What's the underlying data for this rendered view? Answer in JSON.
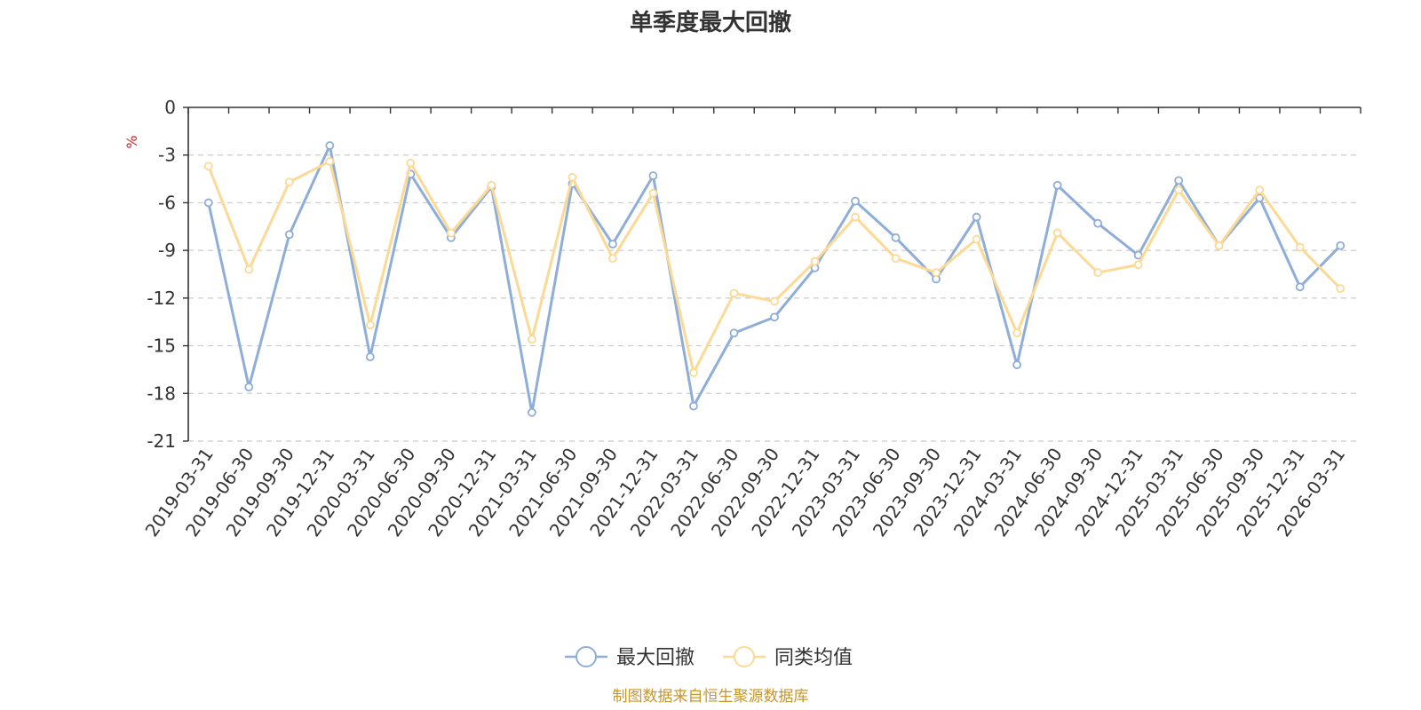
{
  "chart_data": {
    "type": "line",
    "title": "单季度最大回撤",
    "ylabel": "%",
    "ylim": [
      -21,
      0
    ],
    "yticks": [
      0,
      -3,
      -6,
      -9,
      -12,
      -15,
      -18,
      -21
    ],
    "categories": [
      "2019-03-31",
      "2019-06-30",
      "2019-09-30",
      "2019-12-31",
      "2020-03-31",
      "2020-06-30",
      "2020-09-30",
      "2020-12-31",
      "2021-03-31",
      "2021-06-30",
      "2021-09-30",
      "2021-12-31",
      "2022-03-31",
      "2022-06-30",
      "2022-09-30",
      "2022-12-31",
      "2023-03-31",
      "2023-06-30",
      "2023-09-30",
      "2023-12-31",
      "2024-03-31",
      "2024-06-30",
      "2024-09-30",
      "2024-12-31",
      "2025-03-31",
      "2025-06-30",
      "2025-09-30",
      "2025-12-31",
      "2026-03-31"
    ],
    "series": [
      {
        "name": "最大回撤",
        "color": "#8eaed9",
        "values": [
          -6.0,
          -17.6,
          -8.0,
          -2.4,
          -15.7,
          -4.2,
          -8.2,
          -5.0,
          -19.2,
          -4.8,
          -8.6,
          -4.3,
          -18.8,
          -14.2,
          -13.2,
          -10.1,
          -5.9,
          -8.2,
          -10.8,
          -6.9,
          -16.2,
          -4.9,
          -7.3,
          -9.3,
          -4.6,
          -8.7,
          -5.7,
          -11.3,
          -8.7
        ]
      },
      {
        "name": "同类均值",
        "color": "#fcd994",
        "values": [
          -3.7,
          -10.2,
          -4.7,
          -3.4,
          -13.7,
          -3.5,
          -7.9,
          -4.9,
          -14.6,
          -4.4,
          -9.5,
          -5.4,
          -16.7,
          -11.7,
          -12.2,
          -9.7,
          -6.9,
          -9.5,
          -10.4,
          -8.3,
          -14.2,
          -7.9,
          -10.4,
          -9.9,
          -5.2,
          -8.7,
          -5.2,
          -8.8,
          -11.4
        ]
      }
    ],
    "grid": "horizontal-dashed",
    "legend_position": "bottom-center"
  },
  "source_note": "制图数据来自恒生聚源数据库"
}
